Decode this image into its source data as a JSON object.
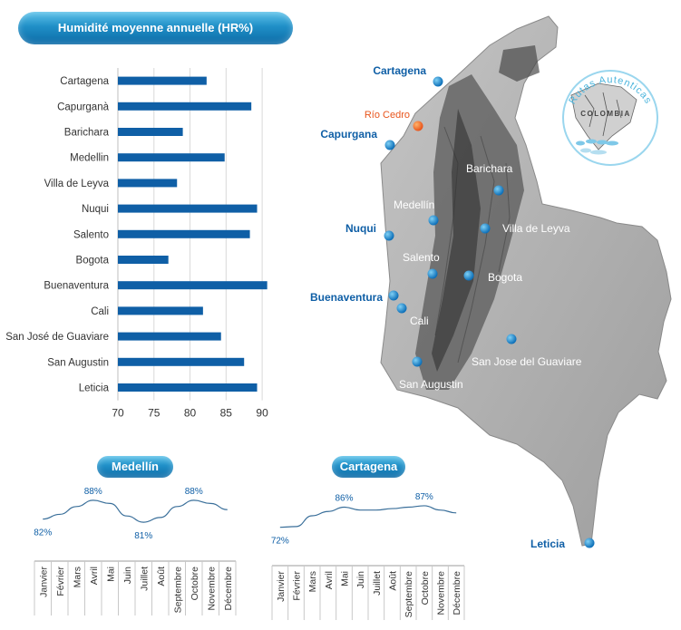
{
  "title": "Humidité moyenne annuelle (HR%)",
  "chart_data": [
    {
      "type": "bar",
      "orientation": "horizontal",
      "title": "Humidité moyenne annuelle (HR%)",
      "categories": [
        "Cartagena",
        "Capurganà",
        "Barichara",
        "Medellin",
        "Villa de Leyva",
        "Nuqui",
        "Salento",
        "Bogota",
        "Buenaventura",
        "Cali",
        "San José de Guaviare",
        "San Augustin",
        "Leticia"
      ],
      "values": [
        82.3,
        88.5,
        79.0,
        84.8,
        78.2,
        89.3,
        88.3,
        77.0,
        90.7,
        81.8,
        84.3,
        87.5,
        89.3
      ],
      "xlim": [
        70,
        92
      ],
      "xticks": [
        70,
        75,
        80,
        85,
        90
      ],
      "grid": true,
      "color": "#0f5fa6"
    },
    {
      "type": "line",
      "title": "Medellín",
      "months": [
        "Janvier",
        "Février",
        "Mars",
        "Avril",
        "Mai",
        "Juin",
        "Juillet",
        "Août",
        "Septembre",
        "Octobre",
        "Novembre",
        "Décembre"
      ],
      "values": [
        82,
        83.5,
        86,
        88,
        87,
        83,
        81,
        82.5,
        86,
        88,
        87,
        85
      ],
      "data_labels": [
        {
          "index": 0,
          "text": "82%"
        },
        {
          "index": 3,
          "text": "88%"
        },
        {
          "index": 6,
          "text": "81%"
        },
        {
          "index": 9,
          "text": "88%"
        }
      ]
    },
    {
      "type": "line",
      "title": "Cartagena",
      "months": [
        "Janvier",
        "Février",
        "Mars",
        "Avril",
        "Mai",
        "Juin",
        "Juillet",
        "Août",
        "Septembre",
        "Octobre",
        "Novembre",
        "Décembre"
      ],
      "values": [
        72,
        72.5,
        80,
        83,
        86,
        84,
        84,
        85,
        86,
        87,
        84,
        82
      ],
      "data_labels": [
        {
          "index": 0,
          "text": "72%"
        },
        {
          "index": 4,
          "text": "86%"
        },
        {
          "index": 9,
          "text": "87%"
        }
      ]
    }
  ],
  "map": {
    "logo": {
      "arc_text": "Rutas Autenticas",
      "center_text": "COLOMBIA"
    },
    "cities": [
      {
        "name": "Cartagena",
        "color": "#0f5fa6"
      },
      {
        "name": "Río Cedro",
        "color": "#e8541b"
      },
      {
        "name": "Capurgana",
        "color": "#0f5fa6"
      },
      {
        "name": "Barichara",
        "color": "#ffffff"
      },
      {
        "name": "Medellín",
        "color": "#ffffff"
      },
      {
        "name": "Villa de Leyva",
        "color": "#ffffff"
      },
      {
        "name": "Nuqui",
        "color": "#0f5fa6"
      },
      {
        "name": "Salento",
        "color": "#ffffff"
      },
      {
        "name": "Bogota",
        "color": "#ffffff"
      },
      {
        "name": "Buenaventura",
        "color": "#0f5fa6"
      },
      {
        "name": "Cali",
        "color": "#ffffff"
      },
      {
        "name": "San Jose del Guaviare",
        "color": "#ffffff"
      },
      {
        "name": "San Augustin",
        "color": "#ffffff"
      },
      {
        "name": "Leticia",
        "color": "#0f5fa6"
      }
    ]
  }
}
